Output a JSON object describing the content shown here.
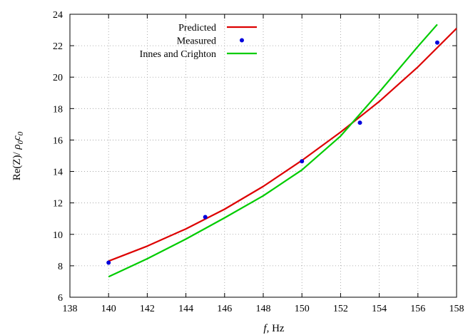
{
  "chart_data": {
    "type": "line",
    "title": "",
    "xlabel": {
      "italic": "f",
      "rest": ", Hz"
    },
    "ylabel": {
      "pre": "Re(Z)/ ",
      "rho": "ρ",
      "sub0a": "0",
      "c": "c",
      "sub0b": "0"
    },
    "xlim": [
      138,
      158
    ],
    "ylim": [
      6,
      24
    ],
    "xticks": [
      138,
      140,
      142,
      144,
      146,
      148,
      150,
      152,
      154,
      156,
      158
    ],
    "yticks": [
      6,
      8,
      10,
      12,
      14,
      16,
      18,
      20,
      22,
      24
    ],
    "grid": true,
    "legend_position": "top-left",
    "series": [
      {
        "name": "Predicted",
        "kind": "line",
        "color": "#dd0000",
        "x": [
          140,
          142,
          144,
          146,
          148,
          150,
          152,
          154,
          156,
          158
        ],
        "y": [
          8.3,
          9.25,
          10.35,
          11.6,
          13.05,
          14.7,
          16.5,
          18.45,
          20.65,
          23.1
        ]
      },
      {
        "name": "Measured",
        "kind": "points",
        "color": "#0000dd",
        "x": [
          140,
          145,
          150,
          153,
          157
        ],
        "y": [
          8.2,
          11.1,
          14.65,
          17.1,
          22.2
        ]
      },
      {
        "name": "Innes and Crighton",
        "kind": "line",
        "color": "#00cc00",
        "x": [
          140,
          142,
          144,
          146,
          148,
          150,
          152,
          154,
          156,
          157
        ],
        "y": [
          7.3,
          8.45,
          9.7,
          11.05,
          12.45,
          14.1,
          16.25,
          19.05,
          21.95,
          23.35
        ]
      }
    ]
  }
}
